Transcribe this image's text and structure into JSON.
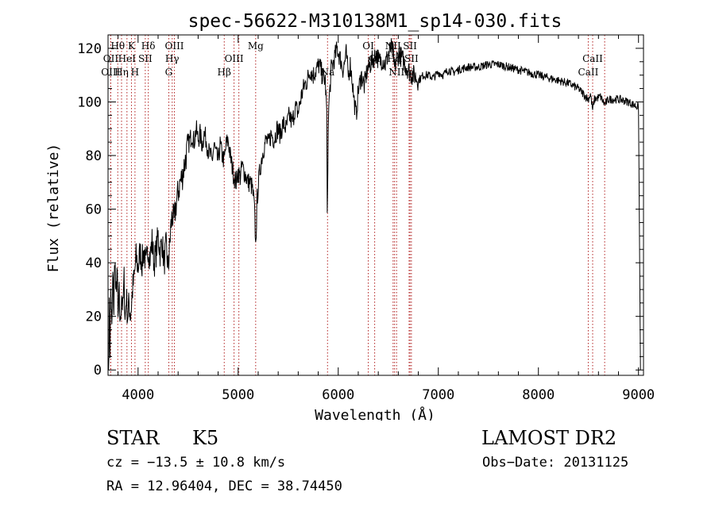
{
  "chart_data": {
    "type": "line",
    "title": "spec-56622-M310138M1_sp14-030.fits",
    "xlabel": "Wavelength (Å)",
    "ylabel": "Flux (relative)",
    "xlim": [
      3700,
      9050
    ],
    "ylim": [
      -2,
      125
    ],
    "xticks": [
      4000,
      5000,
      6000,
      7000,
      8000,
      9000
    ],
    "yticks": [
      0,
      20,
      40,
      60,
      80,
      100,
      120
    ],
    "grid": false,
    "line_color": "#000000",
    "marker_color": "#b22222",
    "spectrum_anchors": [
      [
        3705,
        0
      ],
      [
        3712,
        22
      ],
      [
        3720,
        8
      ],
      [
        3728,
        30
      ],
      [
        3738,
        14
      ],
      [
        3748,
        35
      ],
      [
        3758,
        22
      ],
      [
        3768,
        44
      ],
      [
        3778,
        25
      ],
      [
        3790,
        38
      ],
      [
        3800,
        18
      ],
      [
        3812,
        28
      ],
      [
        3822,
        16
      ],
      [
        3835,
        30
      ],
      [
        3848,
        22
      ],
      [
        3860,
        34
      ],
      [
        3870,
        18
      ],
      [
        3882,
        28
      ],
      [
        3895,
        20
      ],
      [
        3910,
        25
      ],
      [
        3925,
        20
      ],
      [
        3945,
        30
      ],
      [
        3960,
        34
      ],
      [
        3980,
        42
      ],
      [
        4000,
        38
      ],
      [
        4020,
        44
      ],
      [
        4040,
        40
      ],
      [
        4060,
        45
      ],
      [
        4080,
        38
      ],
      [
        4100,
        46
      ],
      [
        4120,
        42
      ],
      [
        4140,
        48
      ],
      [
        4160,
        40
      ],
      [
        4180,
        44
      ],
      [
        4200,
        50
      ],
      [
        4220,
        44
      ],
      [
        4240,
        48
      ],
      [
        4260,
        40
      ],
      [
        4280,
        46
      ],
      [
        4300,
        38
      ],
      [
        4310,
        42
      ],
      [
        4325,
        52
      ],
      [
        4340,
        58
      ],
      [
        4360,
        55
      ],
      [
        4380,
        62
      ],
      [
        4400,
        66
      ],
      [
        4420,
        70
      ],
      [
        4440,
        72
      ],
      [
        4460,
        76
      ],
      [
        4480,
        80
      ],
      [
        4500,
        84
      ],
      [
        4520,
        86
      ],
      [
        4540,
        88
      ],
      [
        4560,
        85
      ],
      [
        4580,
        90
      ],
      [
        4600,
        86
      ],
      [
        4620,
        88
      ],
      [
        4640,
        84
      ],
      [
        4660,
        88
      ],
      [
        4680,
        86
      ],
      [
        4700,
        82
      ],
      [
        4720,
        80
      ],
      [
        4740,
        78
      ],
      [
        4760,
        84
      ],
      [
        4780,
        80
      ],
      [
        4800,
        78
      ],
      [
        4820,
        84
      ],
      [
        4840,
        80
      ],
      [
        4861,
        78
      ],
      [
        4880,
        84
      ],
      [
        4900,
        86
      ],
      [
        4920,
        80
      ],
      [
        4940,
        76
      ],
      [
        4960,
        72
      ],
      [
        4980,
        70
      ],
      [
        5000,
        74
      ],
      [
        5020,
        72
      ],
      [
        5040,
        76
      ],
      [
        5060,
        74
      ],
      [
        5080,
        72
      ],
      [
        5100,
        70
      ],
      [
        5120,
        70
      ],
      [
        5140,
        68
      ],
      [
        5160,
        62
      ],
      [
        5170,
        52
      ],
      [
        5175,
        46
      ],
      [
        5180,
        52
      ],
      [
        5190,
        64
      ],
      [
        5210,
        72
      ],
      [
        5230,
        78
      ],
      [
        5250,
        82
      ],
      [
        5280,
        86
      ],
      [
        5300,
        84
      ],
      [
        5330,
        88
      ],
      [
        5360,
        86
      ],
      [
        5390,
        90
      ],
      [
        5420,
        88
      ],
      [
        5450,
        92
      ],
      [
        5480,
        90
      ],
      [
        5510,
        95
      ],
      [
        5540,
        92
      ],
      [
        5570,
        98
      ],
      [
        5600,
        96
      ],
      [
        5630,
        102
      ],
      [
        5660,
        106
      ],
      [
        5690,
        108
      ],
      [
        5720,
        112
      ],
      [
        5750,
        110
      ],
      [
        5780,
        112
      ],
      [
        5810,
        114
      ],
      [
        5840,
        110
      ],
      [
        5870,
        108
      ],
      [
        5885,
        96
      ],
      [
        5890,
        55
      ],
      [
        5896,
        78
      ],
      [
        5905,
        98
      ],
      [
        5930,
        112
      ],
      [
        5960,
        116
      ],
      [
        5990,
        120
      ],
      [
        6020,
        116
      ],
      [
        6050,
        112
      ],
      [
        6080,
        118
      ],
      [
        6100,
        110
      ],
      [
        6120,
        114
      ],
      [
        6140,
        108
      ],
      [
        6160,
        100
      ],
      [
        6180,
        95
      ],
      [
        6200,
        104
      ],
      [
        6230,
        110
      ],
      [
        6260,
        106
      ],
      [
        6290,
        112
      ],
      [
        6320,
        114
      ],
      [
        6350,
        116
      ],
      [
        6380,
        118
      ],
      [
        6410,
        115
      ],
      [
        6440,
        116
      ],
      [
        6470,
        114
      ],
      [
        6500,
        118
      ],
      [
        6530,
        120
      ],
      [
        6550,
        118
      ],
      [
        6563,
        112
      ],
      [
        6580,
        116
      ],
      [
        6610,
        118
      ],
      [
        6640,
        116
      ],
      [
        6670,
        114
      ],
      [
        6700,
        112
      ],
      [
        6730,
        110
      ],
      [
        6760,
        110
      ],
      [
        6800,
        108
      ],
      [
        6850,
        110
      ],
      [
        6900,
        110
      ],
      [
        6950,
        109
      ],
      [
        7000,
        111
      ],
      [
        7050,
        110
      ],
      [
        7100,
        112
      ],
      [
        7150,
        111
      ],
      [
        7200,
        112
      ],
      [
        7300,
        113
      ],
      [
        7400,
        113
      ],
      [
        7500,
        114
      ],
      [
        7600,
        114
      ],
      [
        7700,
        113
      ],
      [
        7800,
        112
      ],
      [
        7900,
        111
      ],
      [
        8000,
        110
      ],
      [
        8100,
        109
      ],
      [
        8200,
        108
      ],
      [
        8300,
        107
      ],
      [
        8400,
        105
      ],
      [
        8498,
        101
      ],
      [
        8520,
        103
      ],
      [
        8542,
        97
      ],
      [
        8560,
        101
      ],
      [
        8620,
        102
      ],
      [
        8662,
        99
      ],
      [
        8700,
        101
      ],
      [
        8800,
        101
      ],
      [
        8900,
        100
      ],
      [
        8950,
        99
      ],
      [
        9000,
        98
      ],
      [
        9020,
        0
      ]
    ],
    "lines_top": [
      {
        "label": "Hθ",
        "x": 3797
      },
      {
        "label": "K",
        "x": 3934
      },
      {
        "label": "Hδ",
        "x": 4102
      },
      {
        "label": "OIII",
        "x": 4363
      },
      {
        "label": "Mg",
        "x": 5175
      },
      {
        "label": "OI",
        "x": 6300
      },
      {
        "label": "NII",
        "x": 6548
      },
      {
        "label": "SII",
        "x": 6717
      }
    ],
    "lines_mid": [
      {
        "label": "OII",
        "x": 3727
      },
      {
        "label": "HeI",
        "x": 3889
      },
      {
        "label": "SII",
        "x": 4072
      },
      {
        "label": "Hγ",
        "x": 4341
      },
      {
        "label": "OIII",
        "x": 4959
      },
      {
        "label": "OI",
        "x": 6364
      },
      {
        "label": "Hα",
        "x": 6563
      },
      {
        "label": "SII",
        "x": 6731
      },
      {
        "label": "CaII",
        "x": 8542
      }
    ],
    "lines_bot": [
      {
        "label": "OIII",
        "x": 3726
      },
      {
        "label": "Hη",
        "x": 3835
      },
      {
        "label": "H",
        "x": 3969
      },
      {
        "label": "G",
        "x": 4307
      },
      {
        "label": "Hβ",
        "x": 4861
      },
      {
        "label": "Na",
        "x": 5893
      },
      {
        "label": "NII",
        "x": 6583
      },
      {
        "label": "Li",
        "x": 6708
      },
      {
        "label": "CaII",
        "x": 8498
      }
    ],
    "extra_markers": [
      5007,
      8662
    ]
  },
  "info": {
    "class": "STAR",
    "subclass": "K5",
    "survey": "LAMOST DR2",
    "cz": "cz = −13.5 ± 10.8 km/s",
    "obs_date": "Obs−Date: 20131125",
    "radec": "RA =  12.96404, DEC =  38.74450"
  }
}
